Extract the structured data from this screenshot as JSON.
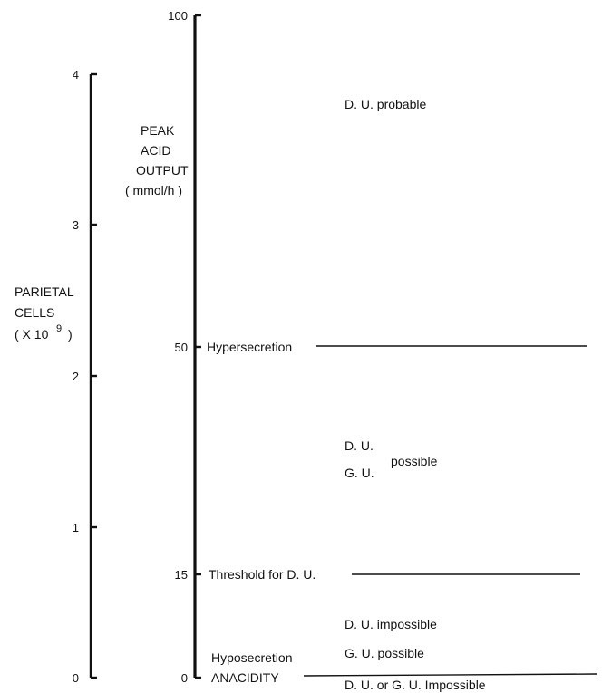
{
  "left_axis": {
    "label_line1": "PARIETAL",
    "label_line2": "CELLS",
    "label_line3": "( X 10",
    "label_exp": "9",
    "label_close": ")",
    "ticks": [
      "0",
      "1",
      "2",
      "3",
      "4"
    ]
  },
  "right_axis": {
    "label_line1": "PEAK",
    "label_line2": "ACID",
    "label_line3": "OUTPUT",
    "label_line4": "( mmol/h )",
    "ticks": [
      "0",
      "15",
      "50",
      "100"
    ]
  },
  "levels": {
    "hypersecretion": "Hypersecretion",
    "threshold": "Threshold for D. U.",
    "hyposecretion": "Hyposecretion",
    "anacidity": "ANACIDITY"
  },
  "zones": {
    "du_probable": "D. U.  probable",
    "du": "D. U.",
    "gu": "G. U.",
    "possible": "possible",
    "du_impossible": "D. U.  impossible",
    "gu_possible": "G. U.  possible",
    "du_gu_impossible": "D. U.  or  G. U.  Impossible"
  }
}
